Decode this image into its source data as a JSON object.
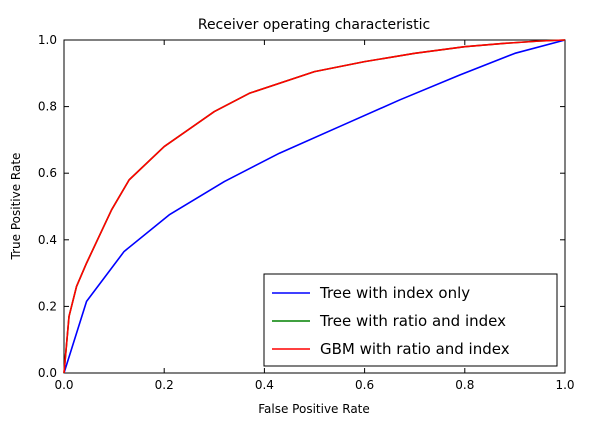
{
  "chart_data": {
    "type": "line",
    "title": "Receiver operating characteristic",
    "xlabel": "False Positive Rate",
    "ylabel": "True Positive Rate",
    "xlim": [
      0.0,
      1.0
    ],
    "ylim": [
      0.0,
      1.0
    ],
    "xticks": [
      "0.0",
      "0.2",
      "0.4",
      "0.6",
      "0.8",
      "1.0"
    ],
    "yticks": [
      "0.0",
      "0.2",
      "0.4",
      "0.6",
      "0.8",
      "1.0"
    ],
    "grid": false,
    "legend_position": "lower-right",
    "series": [
      {
        "name": "Tree with index only",
        "color": "#0000ff",
        "x": [
          0.0,
          0.045,
          0.12,
          0.21,
          0.32,
          0.43,
          0.55,
          0.67,
          0.79,
          0.9,
          1.0
        ],
        "y": [
          0.0,
          0.215,
          0.365,
          0.475,
          0.575,
          0.66,
          0.74,
          0.82,
          0.895,
          0.96,
          1.0
        ]
      },
      {
        "name": "Tree with ratio and index",
        "color": "#008000",
        "x": [
          0.0,
          0.01,
          0.025,
          0.045,
          0.07,
          0.095,
          0.13,
          0.2,
          0.3,
          0.37,
          0.5,
          0.6,
          0.7,
          0.8,
          0.88,
          0.95,
          1.0
        ],
        "y": [
          0.0,
          0.17,
          0.26,
          0.33,
          0.41,
          0.49,
          0.58,
          0.68,
          0.785,
          0.84,
          0.905,
          0.935,
          0.96,
          0.98,
          0.99,
          0.997,
          1.0
        ]
      },
      {
        "name": "GBM with ratio and index",
        "color": "#ff0000",
        "x": [
          0.0,
          0.01,
          0.025,
          0.045,
          0.07,
          0.095,
          0.13,
          0.2,
          0.3,
          0.37,
          0.5,
          0.6,
          0.7,
          0.8,
          0.88,
          0.95,
          1.0
        ],
        "y": [
          0.0,
          0.17,
          0.26,
          0.33,
          0.41,
          0.49,
          0.58,
          0.68,
          0.785,
          0.84,
          0.905,
          0.935,
          0.96,
          0.98,
          0.99,
          0.997,
          1.0
        ]
      }
    ]
  }
}
